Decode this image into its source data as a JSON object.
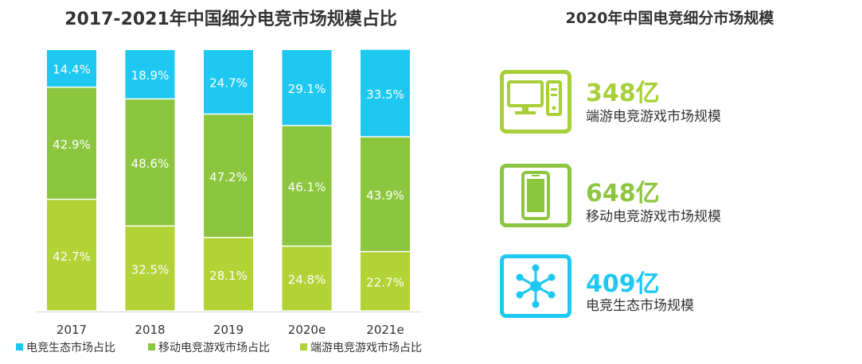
{
  "chart_data": {
    "type": "bar",
    "stacked": true,
    "percent": true,
    "title": "2017-2021年中国细分电竞市场规模占比",
    "categories": [
      "2017",
      "2018",
      "2019",
      "2020e",
      "2021e"
    ],
    "series": [
      {
        "name": "端游电竞游戏市场占比",
        "color": "#b2d235",
        "values": [
          42.7,
          32.5,
          28.1,
          24.8,
          22.7
        ]
      },
      {
        "name": "移动电竞游戏市场占比",
        "color": "#8cc63f",
        "values": [
          42.9,
          48.6,
          47.2,
          46.1,
          43.9
        ]
      },
      {
        "name": "电竞生态市场占比",
        "color": "#1ec8f0",
        "values": [
          14.4,
          18.9,
          24.7,
          29.1,
          33.5
        ]
      }
    ],
    "legend_order": [
      "电竞生态市场占比",
      "移动电竞游戏市场占比",
      "端游电竞游戏市场占比"
    ],
    "ylim": [
      0,
      100
    ],
    "legend_position": "bottom-left",
    "grid": false
  },
  "right_panel": {
    "title": "2020年中国电竞细分市场规模",
    "items": [
      {
        "icon": "desktop-computer-icon",
        "value": "348亿",
        "label": "端游电竞游戏市场规模",
        "color": "#a8cf38"
      },
      {
        "icon": "mobile-phone-icon",
        "value": "648亿",
        "label": "移动电竞游戏市场规模",
        "color": "#8cc63f"
      },
      {
        "icon": "network-nodes-icon",
        "value": "409亿",
        "label": "电竞生态市场规模",
        "color": "#1ec8f0"
      }
    ]
  }
}
